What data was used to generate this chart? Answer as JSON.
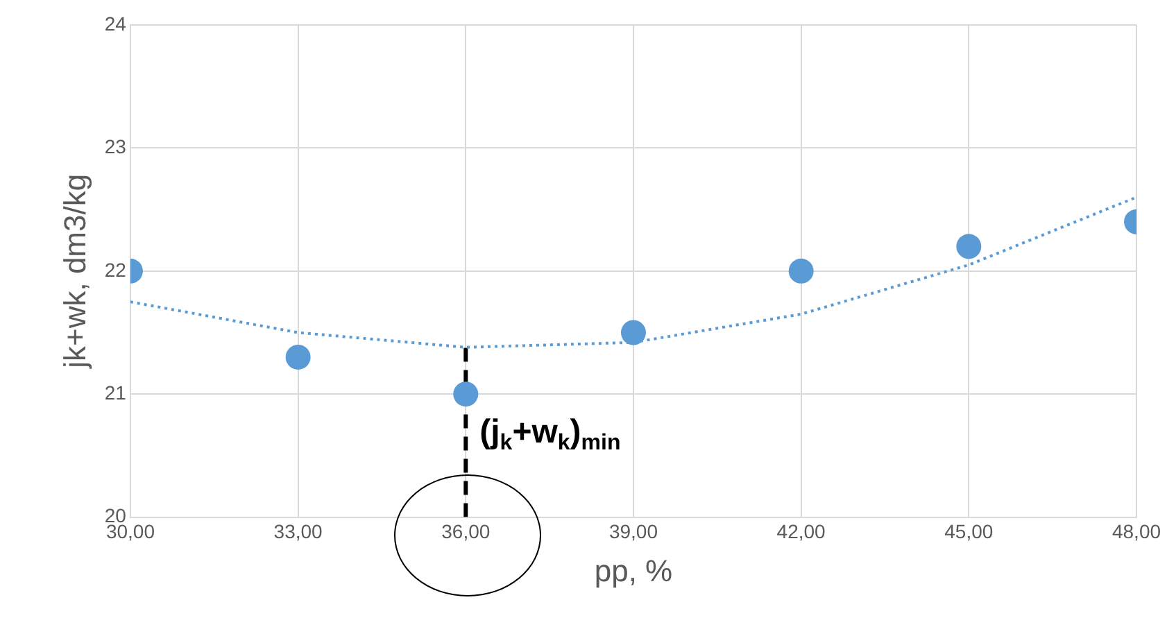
{
  "chart_data": {
    "type": "scatter",
    "xlabel": "pp, %",
    "ylabel": "jk+wk, dm3/kg",
    "xlim": [
      30,
      48
    ],
    "xticks": [
      {
        "value": 30,
        "label": "30,00"
      },
      {
        "value": 33,
        "label": "33,00"
      },
      {
        "value": 36,
        "label": "36,00"
      },
      {
        "value": 39,
        "label": "39,00"
      },
      {
        "value": 42,
        "label": "42,00"
      },
      {
        "value": 45,
        "label": "45,00"
      },
      {
        "value": 48,
        "label": "48,00"
      }
    ],
    "ylim": [
      20,
      24
    ],
    "yticks": [
      20,
      21,
      22,
      23,
      24
    ],
    "grid": true,
    "legend": false,
    "series": [
      {
        "color": "#5b9bd5",
        "marker": "circle",
        "x": [
          30,
          33,
          36,
          39,
          42,
          45,
          48
        ],
        "values": [
          22,
          21.3,
          21,
          21.5,
          22,
          22.2,
          22.4
        ]
      },
      {
        "type": "line",
        "color": "#5b9bd5",
        "marker": "none",
        "line_style": "dotted",
        "x": [
          30,
          33,
          36,
          39,
          42,
          45,
          48
        ],
        "values": [
          21.75,
          21.5,
          21.38,
          21.42,
          21.65,
          22.05,
          22.6
        ]
      },
      {
        "type": "line",
        "color": "#000000",
        "marker": "none",
        "line_style": "dashed",
        "x": [
          36,
          36
        ],
        "values": [
          20,
          21.4
        ]
      }
    ],
    "annotations": [
      {
        "text": "(j$_{k}$+w$_{k}$)$_{min}$",
        "x": 36,
        "y": 20.68
      }
    ]
  }
}
